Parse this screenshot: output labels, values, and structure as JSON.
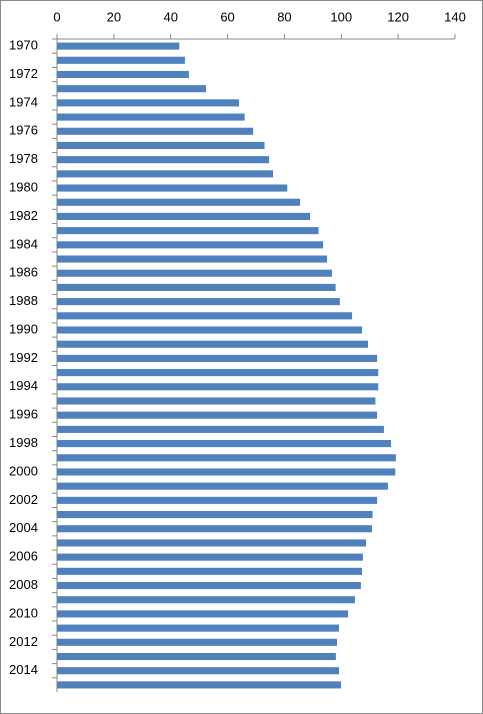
{
  "chart_data": {
    "type": "bar",
    "orientation": "horizontal",
    "categories": [
      "1970",
      null,
      "1972",
      null,
      "1974",
      null,
      "1976",
      null,
      "1978",
      null,
      "1980",
      null,
      "1982",
      null,
      "1984",
      null,
      "1986",
      null,
      "1988",
      null,
      "1990",
      null,
      "1992",
      null,
      "1994",
      null,
      "1996",
      null,
      "1998",
      null,
      "2000",
      null,
      "2002",
      null,
      "2004",
      null,
      "2006",
      null,
      "2008",
      null,
      "2010",
      null,
      "2012",
      null,
      "2014",
      null
    ],
    "values": [
      43,
      45,
      46.4,
      52.4,
      64,
      66,
      69,
      73,
      74.6,
      76,
      81,
      85.5,
      89,
      92,
      93.6,
      95,
      96.7,
      98,
      99.5,
      103.8,
      107.3,
      109.4,
      112.6,
      113,
      113,
      112,
      112.6,
      115,
      117.5,
      119.2,
      119,
      116.4,
      112.6,
      111,
      110.8,
      108.7,
      107.6,
      107.3,
      106.9,
      104.8,
      102.4,
      99.2,
      98.5,
      98.1,
      99.2,
      99.9
    ],
    "color": "#4f81bd",
    "xlim": [
      0,
      140
    ],
    "xticks": [
      0,
      20,
      40,
      60,
      80,
      100,
      120,
      140
    ],
    "grid": false
  }
}
